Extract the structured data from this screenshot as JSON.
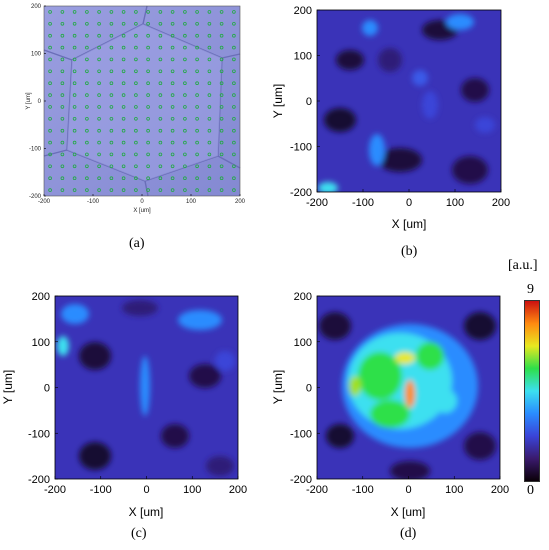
{
  "chart_data": [
    {
      "type": "scatter",
      "panel": "(a)",
      "xlabel": "X [um]",
      "ylabel": "Y [um]",
      "xlim": [
        -200,
        200
      ],
      "ylim": [
        -200,
        200
      ],
      "xticks": [
        "-200",
        "-100",
        "0",
        "100",
        "200"
      ],
      "yticks": [
        "200",
        "100",
        "0",
        "-100",
        "-200"
      ],
      "grid_spacing_um": 25,
      "marker_color": "#22aa44",
      "background_color": "#8a8fd6"
    },
    {
      "type": "heatmap",
      "panel": "(b)",
      "xlabel": "X [um]",
      "ylabel": "Y [um]",
      "xlim": [
        -200,
        200
      ],
      "ylim": [
        -200,
        200
      ],
      "xticks": [
        "-200",
        "-100",
        "0",
        "100",
        "200"
      ],
      "yticks": [
        "200",
        "100",
        "0",
        "-100",
        "-200"
      ]
    },
    {
      "type": "heatmap",
      "panel": "(c)",
      "xlabel": "X [um]",
      "ylabel": "Y [um]",
      "xlim": [
        -200,
        200
      ],
      "ylim": [
        -200,
        200
      ],
      "xticks": [
        "-200",
        "-100",
        "0",
        "100",
        "200"
      ],
      "yticks": [
        "200",
        "100",
        "0",
        "-100",
        "-200"
      ]
    },
    {
      "type": "heatmap",
      "panel": "(d)",
      "xlabel": "X [um]",
      "ylabel": "Y [um]",
      "xlim": [
        -200,
        200
      ],
      "ylim": [
        -200,
        200
      ],
      "xticks": [
        "-200",
        "-100",
        "0",
        "100",
        "200"
      ],
      "yticks": [
        "200",
        "100",
        "0",
        "-100",
        "-200"
      ]
    }
  ],
  "colorbar": {
    "unit": "[a.u.]",
    "max": "9",
    "min": "0",
    "colors": [
      "#0a0008",
      "#3a1a6e",
      "#3a44d8",
      "#2a8cff",
      "#3ce0f0",
      "#2ee04a",
      "#e8e820",
      "#ff8a10",
      "#cc1010"
    ]
  },
  "captions": {
    "a": "(a)",
    "b": "(b)",
    "c": "(c)",
    "d": "(d)"
  }
}
